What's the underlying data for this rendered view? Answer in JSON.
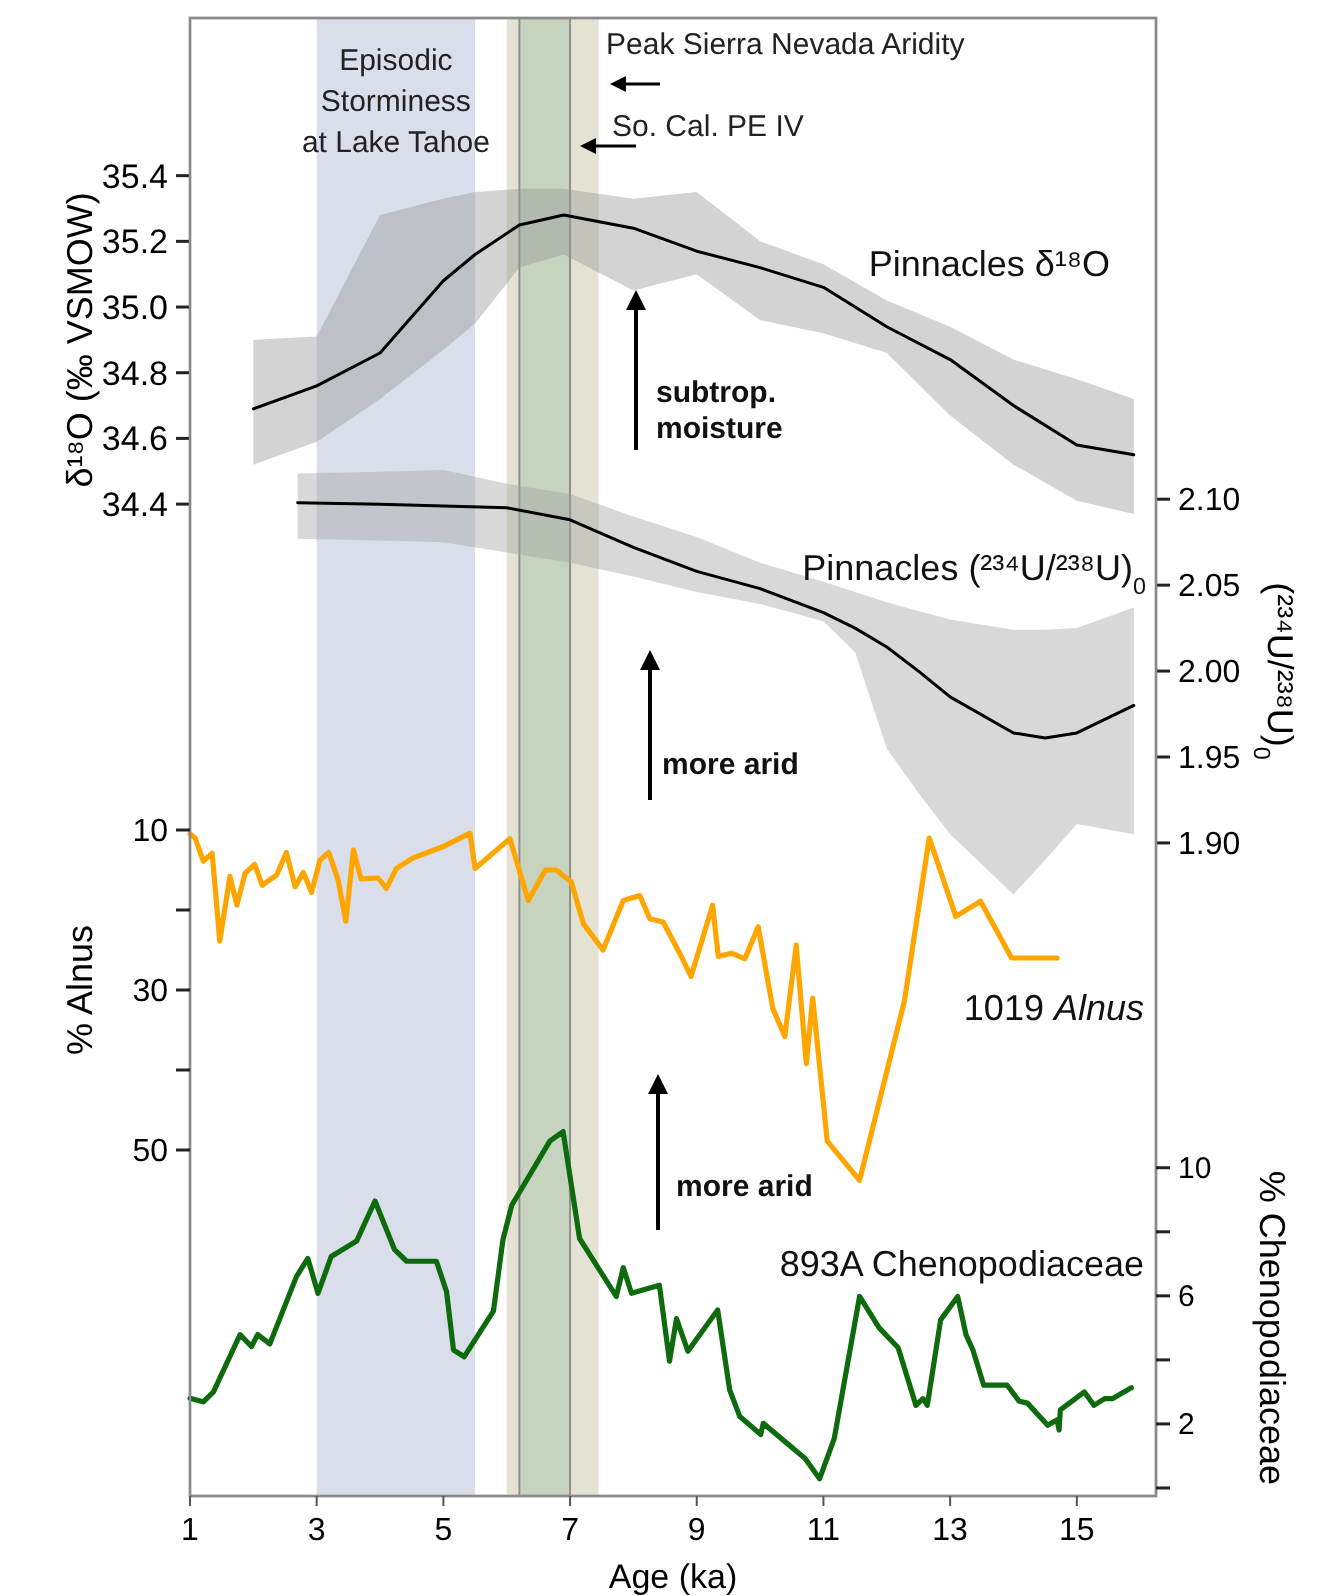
{
  "chart_data": [
    {
      "type": "line",
      "ylabel": "δ¹⁸O (‰ VSMOW)",
      "y2label": "(²³⁴U/²³⁸U)$_{0}$",
      "tick_labels": "y",
      "xlim": [
        1,
        16.25
      ],
      "ylim": [
        31.38,
        35.88
      ],
      "yticks": [
        34.4,
        34.6,
        34.8,
        {
          "value": 35,
          "label": "35.0"
        },
        35.2,
        35.4
      ],
      "y2lim": [
        1.52,
        2.38
      ],
      "y2ticks": [
        {
          "value": 1.9,
          "label": "1.90"
        },
        {
          "value": 1.95,
          "label": "1.95"
        },
        {
          "value": 2,
          "label": "2.00"
        },
        {
          "value": 2.05,
          "label": "2.05"
        },
        {
          "value": 2.1,
          "label": "2.10"
        }
      ],
      "bands": [
        {
          "axis": "x",
          "from": 3,
          "to": 5.5,
          "label": "Episodic\nStorminess\nat Lake Tahoe",
          "color": "#dadeea"
        },
        {
          "axis": "x",
          "from": 6,
          "to": 7.45,
          "label": "Peak Sierra Nevada Aridity",
          "color": "#e4e3d3"
        },
        {
          "axis": "x",
          "from": 6.2,
          "to": 7,
          "label": "So. Cal. PE IV",
          "color": "#c6d4bf"
        }
      ],
      "annotations": [
        "subtrop.\nmoisture",
        "more arid"
      ],
      "series": [
        {
          "name": "Pinnacles δ¹⁸O",
          "color": "#000000",
          "x": [
            2,
            3,
            4,
            5,
            5.5,
            6.2,
            6.9,
            8,
            9,
            10,
            11,
            12,
            13,
            14,
            15,
            15.9
          ],
          "values": [
            34.69,
            34.76,
            34.86,
            35.08,
            35.16,
            35.25,
            35.28,
            35.24,
            35.17,
            35.12,
            35.06,
            34.94,
            34.84,
            34.7,
            34.58,
            34.55
          ],
          "lower": [
            34.52,
            34.59,
            34.72,
            34.87,
            34.95,
            35.12,
            35.16,
            35.05,
            35.1,
            34.96,
            34.92,
            34.86,
            34.67,
            34.52,
            34.41,
            34.37
          ],
          "upper": [
            34.9,
            34.91,
            35.28,
            35.33,
            35.35,
            35.36,
            35.36,
            35.33,
            35.35,
            35.2,
            35.13,
            35.02,
            34.94,
            34.84,
            34.78,
            34.72
          ]
        },
        {
          "name": "Pinnacles (²³⁴U/²³⁸U)$_{0}$",
          "color": "#000000",
          "axis": "y2",
          "x": [
            2.7,
            4,
            5,
            6,
            7,
            8,
            9,
            10,
            11,
            11.5,
            12,
            12.5,
            13,
            14,
            14.5,
            15,
            15.9
          ],
          "values": [
            2.098,
            2.097,
            2.096,
            2.095,
            2.088,
            2.072,
            2.058,
            2.048,
            2.034,
            2.025,
            2.014,
            2.0,
            1.985,
            1.964,
            1.961,
            1.964,
            1.98
          ],
          "lower": [
            2.077,
            2.076,
            2.075,
            2.069,
            2.063,
            2.055,
            2.046,
            2.039,
            2.029,
            2.011,
            1.955,
            1.929,
            1.905,
            1.87,
            1.89,
            1.911,
            1.905
          ],
          "upper": [
            2.115,
            2.116,
            2.117,
            2.109,
            2.103,
            2.09,
            2.078,
            2.063,
            2.052,
            2.046,
            2.04,
            2.035,
            2.03,
            2.024,
            2.024,
            2.025,
            2.037
          ]
        }
      ]
    },
    {
      "type": "line",
      "xlabel": "Age (ka)",
      "ylabel": "% Alnus",
      "y2label": "% Chenopodiaceae",
      "xlim": [
        1,
        16.25
      ],
      "xticks": [
        1,
        3,
        5,
        7,
        9,
        11,
        13,
        15
      ],
      "ylim": [
        93.25,
        -91.5
      ],
      "yticks": [
        10,
        {
          "value": 20,
          "label": null
        },
        30,
        {
          "value": 40,
          "label": null
        },
        50
      ],
      "y2lim": [
        -0.25,
        45.9
      ],
      "y2ticks": [
        {
          "value": 0,
          "label": null
        },
        2,
        {
          "value": 4,
          "label": null
        },
        6,
        {
          "value": 8,
          "label": null
        },
        10
      ],
      "annotations": [
        "more arid"
      ],
      "series": [
        {
          "name": "1019 Alnus",
          "color": "#ffa500",
          "x": [
            1,
            1.08,
            1.21,
            1.35,
            1.47,
            1.63,
            1.74,
            1.87,
            2.02,
            2.14,
            2.37,
            2.52,
            2.66,
            2.79,
            2.92,
            3.05,
            3.19,
            3.34,
            3.46,
            3.58,
            3.7,
            3.97,
            4.1,
            4.26,
            4.52,
            4.99,
            5.42,
            5.5,
            6.05,
            6.34,
            6.61,
            6.78,
            7.02,
            7.21,
            7.52,
            7.84,
            8.1,
            8.26,
            8.47,
            8.73,
            8.91,
            9.25,
            9.34,
            9.55,
            9.76,
            9.97,
            10.2,
            10.39,
            10.57,
            10.73,
            10.83,
            11.06,
            11.57,
            12.28,
            12.67,
            13.09,
            13.48,
            13.97,
            14.69
          ],
          "values": [
            10.5,
            11,
            13.9,
            12.9,
            23.9,
            15.8,
            19.4,
            15.4,
            14.3,
            16.9,
            15.6,
            12.8,
            17.1,
            15.3,
            17.8,
            13.8,
            12.8,
            16.3,
            21.4,
            12.5,
            16.1,
            16,
            17.3,
            14.8,
            13.5,
            12.1,
            10.4,
            14.8,
            11.1,
            18.8,
            15,
            15,
            16.5,
            21.7,
            25,
            18.8,
            18.2,
            21.1,
            21.5,
            25.4,
            28.3,
            19.4,
            25.8,
            25.4,
            26.1,
            22.1,
            32.3,
            35.8,
            24.4,
            39.2,
            31,
            48.9,
            53.8,
            31.3,
            11,
            20.8,
            18.9,
            26,
            26
          ]
        },
        {
          "name": "893A Chenopodiaceae",
          "color": "#0d6b0d",
          "axis": "y2",
          "x": [
            1,
            1.1,
            1.21,
            1.37,
            1.79,
            1.97,
            2.07,
            2.26,
            2.68,
            2.86,
            3.02,
            3.23,
            3.63,
            3.92,
            4.23,
            4.42,
            4.89,
            5.05,
            5.16,
            5.33,
            5.79,
            5.94,
            6.08,
            6.68,
            6.89,
            7.15,
            7.73,
            7.84,
            7.97,
            8.41,
            8.57,
            8.68,
            8.86,
            9.33,
            9.52,
            9.68,
            10.01,
            10.05,
            10.71,
            10.94,
            11.17,
            11.57,
            11.88,
            12.18,
            12.46,
            12.57,
            12.64,
            12.85,
            13.12,
            13.25,
            13.36,
            13.53,
            13.9,
            14.09,
            14.22,
            14.54,
            14.69,
            14.72,
            14.74,
            15.12,
            15.27,
            15.44,
            15.56,
            15.86
          ],
          "values": [
            2.8,
            2.75,
            2.69,
            3,
            4.79,
            4.42,
            4.79,
            4.5,
            6.6,
            7.17,
            6.08,
            7.23,
            7.71,
            8.96,
            7.44,
            7.08,
            7.08,
            6.13,
            4.31,
            4.1,
            5.52,
            7.75,
            8.83,
            10.83,
            11.13,
            7.79,
            5.98,
            6.88,
            6.08,
            6.33,
            3.96,
            5.29,
            4.27,
            5.56,
            3.06,
            2.23,
            1.67,
            2.02,
            0.92,
            0.29,
            1.54,
            5.98,
            5,
            4.38,
            2.58,
            2.79,
            2.58,
            5.25,
            5.98,
            4.79,
            4.31,
            3.21,
            3.21,
            2.71,
            2.65,
            1.96,
            2.13,
            1.81,
            2.44,
            3,
            2.58,
            2.79,
            2.79,
            3.13
          ]
        }
      ]
    }
  ]
}
